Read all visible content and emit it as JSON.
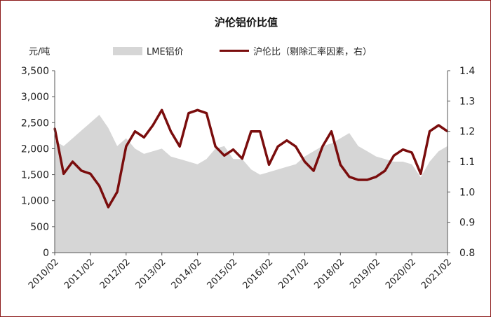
{
  "chart_data": {
    "type": "line",
    "title": "沪伦铝价比值",
    "y_left_unit": "元/吨",
    "y_left_ticks": [
      "0",
      "500",
      "1,000",
      "1,500",
      "2,000",
      "2,500",
      "3,000",
      "3,500"
    ],
    "y_left_range": [
      0,
      3500
    ],
    "y_right_ticks": [
      "0.8",
      "0.9",
      "1.0",
      "1.1",
      "1.2",
      "1.3",
      "1.4"
    ],
    "y_right_range": [
      0.8,
      1.4
    ],
    "x_ticks": [
      "2010/02",
      "2011/02",
      "2012/02",
      "2013/02",
      "2014/02",
      "2015/02",
      "2016/02",
      "2017/02",
      "2018/02",
      "2019/02",
      "2020/02",
      "2021/02"
    ],
    "legend_placement": "top",
    "grid": false,
    "series": [
      {
        "name": "LME铝价",
        "kind": "area",
        "axis": "left",
        "color": "#d6d6d6",
        "x": [
          "2010/02",
          "2010/05",
          "2010/08",
          "2010/11",
          "2011/02",
          "2011/05",
          "2011/08",
          "2011/11",
          "2012/02",
          "2012/05",
          "2012/08",
          "2012/11",
          "2013/02",
          "2013/05",
          "2013/08",
          "2013/11",
          "2014/02",
          "2014/05",
          "2014/08",
          "2014/11",
          "2015/02",
          "2015/05",
          "2015/08",
          "2015/11",
          "2016/02",
          "2016/05",
          "2016/08",
          "2016/11",
          "2017/02",
          "2017/05",
          "2017/08",
          "2017/11",
          "2018/02",
          "2018/05",
          "2018/08",
          "2018/11",
          "2019/02",
          "2019/05",
          "2019/08",
          "2019/11",
          "2020/02",
          "2020/05",
          "2020/08",
          "2020/11",
          "2021/02"
        ],
        "values": [
          2150,
          2050,
          2200,
          2350,
          2500,
          2650,
          2400,
          2050,
          2200,
          2000,
          1900,
          1950,
          2000,
          1850,
          1800,
          1750,
          1700,
          1800,
          2000,
          2050,
          1800,
          1800,
          1600,
          1500,
          1550,
          1600,
          1650,
          1700,
          1850,
          1950,
          2050,
          2100,
          2200,
          2300,
          2050,
          1950,
          1850,
          1800,
          1750,
          1750,
          1700,
          1450,
          1750,
          1950,
          2050
        ]
      },
      {
        "name": "沪伦比（剔除汇率因素，右）",
        "kind": "line",
        "axis": "right",
        "color": "#7a0d0d",
        "x": [
          "2010/02",
          "2010/05",
          "2010/08",
          "2010/11",
          "2011/02",
          "2011/05",
          "2011/08",
          "2011/11",
          "2012/02",
          "2012/05",
          "2012/08",
          "2012/11",
          "2013/02",
          "2013/05",
          "2013/08",
          "2013/11",
          "2014/02",
          "2014/05",
          "2014/08",
          "2014/11",
          "2015/02",
          "2015/05",
          "2015/08",
          "2015/11",
          "2016/02",
          "2016/05",
          "2016/08",
          "2016/11",
          "2017/02",
          "2017/05",
          "2017/08",
          "2017/11",
          "2018/02",
          "2018/05",
          "2018/08",
          "2018/11",
          "2019/02",
          "2019/05",
          "2019/08",
          "2019/11",
          "2020/02",
          "2020/05",
          "2020/08",
          "2020/11",
          "2021/02"
        ],
        "values": [
          1.21,
          1.06,
          1.1,
          1.07,
          1.06,
          1.02,
          0.95,
          1.0,
          1.15,
          1.2,
          1.18,
          1.22,
          1.27,
          1.2,
          1.15,
          1.26,
          1.27,
          1.26,
          1.15,
          1.12,
          1.14,
          1.11,
          1.2,
          1.2,
          1.09,
          1.15,
          1.17,
          1.15,
          1.1,
          1.07,
          1.15,
          1.2,
          1.09,
          1.05,
          1.04,
          1.04,
          1.05,
          1.07,
          1.12,
          1.14,
          1.13,
          1.06,
          1.2,
          1.22,
          1.2
        ]
      }
    ]
  }
}
